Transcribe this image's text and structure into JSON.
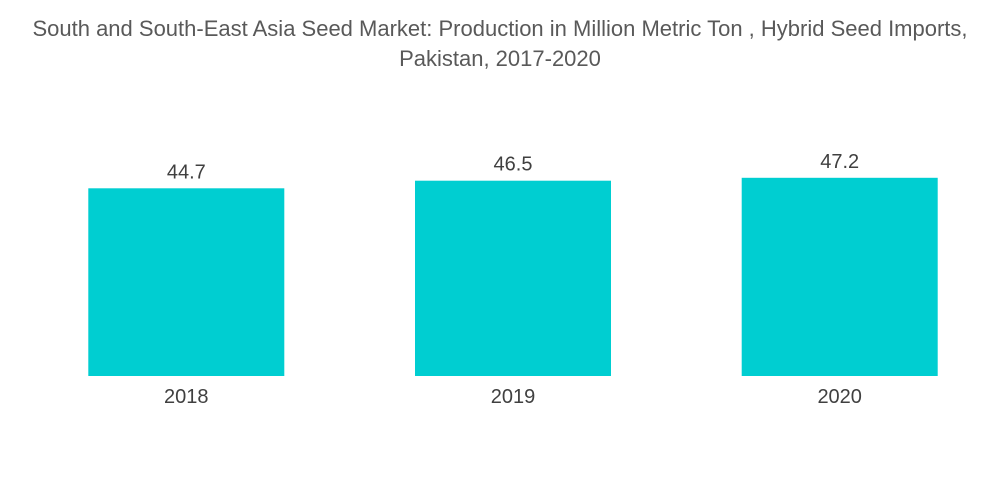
{
  "chart_data": {
    "type": "bar",
    "title": "South and South-East Asia Seed Market: Production in Million Metric Ton , Hybrid Seed Imports, Pakistan, 2017-2020",
    "categories": [
      "2018",
      "2019",
      "2020"
    ],
    "values": [
      44.7,
      46.5,
      47.2
    ],
    "data_labels": [
      "44.7",
      "46.5",
      "47.2"
    ],
    "xlabel": "",
    "ylabel": "",
    "bar_color": "#00CED1",
    "grid": false,
    "legend": "none"
  }
}
